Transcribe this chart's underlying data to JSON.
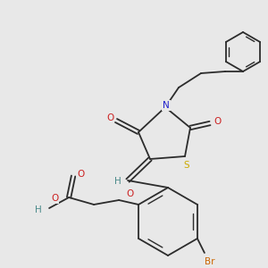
{
  "background_color": "#e8e8e8",
  "bond_color": "#2c2c2c",
  "figsize": [
    3.0,
    3.0
  ],
  "dpi": 100,
  "colors": {
    "S": "#ccaa00",
    "N": "#2020cc",
    "O": "#cc2020",
    "Br": "#cc6600",
    "H": "#4a8a8a",
    "C": "#2c2c2c"
  }
}
